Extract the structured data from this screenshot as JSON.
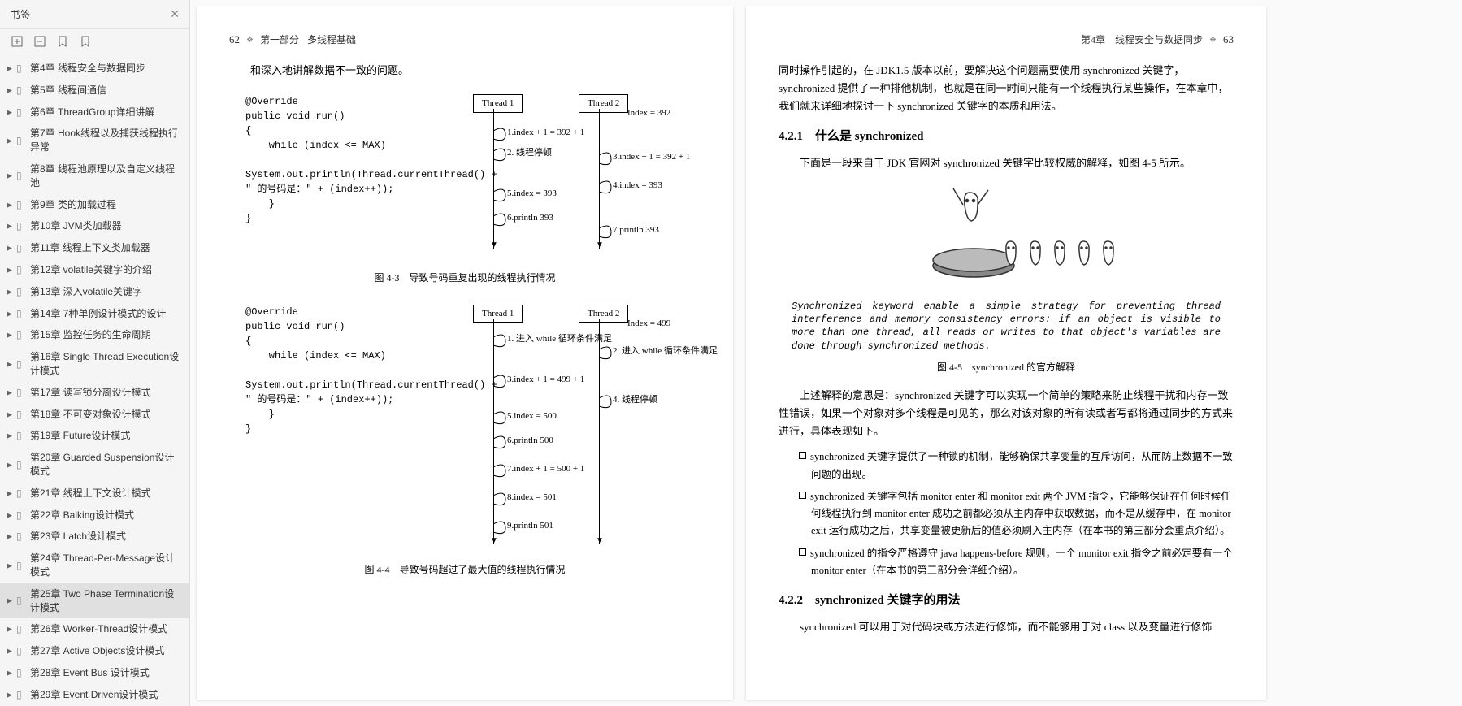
{
  "sidebar": {
    "title": "书签",
    "items": [
      {
        "label": "第4章 线程安全与数据同步",
        "selected": false
      },
      {
        "label": "第5章 线程间通信",
        "selected": false
      },
      {
        "label": "第6章 ThreadGroup详细讲解",
        "selected": false
      },
      {
        "label": "第7章 Hook线程以及捕获线程执行异常",
        "selected": false
      },
      {
        "label": "第8章 线程池原理以及自定义线程池",
        "selected": false
      },
      {
        "label": "第9章 类的加载过程",
        "selected": false
      },
      {
        "label": "第10章 JVM类加载器",
        "selected": false
      },
      {
        "label": "第11章 线程上下文类加载器",
        "selected": false
      },
      {
        "label": "第12章 volatile关键字的介绍",
        "selected": false
      },
      {
        "label": "第13章 深入volatile关键字",
        "selected": false
      },
      {
        "label": "第14章 7种单例设计模式的设计",
        "selected": false
      },
      {
        "label": "第15章 监控任务的生命周期",
        "selected": false
      },
      {
        "label": "第16章 Single Thread Execution设计模式",
        "selected": false
      },
      {
        "label": "第17章 读写锁分离设计模式",
        "selected": false
      },
      {
        "label": "第18章 不可变对象设计模式",
        "selected": false
      },
      {
        "label": "第19章 Future设计模式",
        "selected": false
      },
      {
        "label": "第20章 Guarded Suspension设计模式",
        "selected": false
      },
      {
        "label": "第21章 线程上下文设计模式",
        "selected": false
      },
      {
        "label": "第22章 Balking设计模式",
        "selected": false
      },
      {
        "label": "第23章 Latch设计模式",
        "selected": false
      },
      {
        "label": "第24章 Thread-Per-Message设计模式",
        "selected": false
      },
      {
        "label": "第25章 Two Phase Termination设计模式",
        "selected": true
      },
      {
        "label": "第26章 Worker-Thread设计模式",
        "selected": false
      },
      {
        "label": "第27章 Active Objects设计模式",
        "selected": false
      },
      {
        "label": "第28章 Event Bus 设计模式",
        "selected": false
      },
      {
        "label": "第29章 Event Driven设计模式",
        "selected": false
      }
    ]
  },
  "leftPage": {
    "pageNum": "62",
    "part": "第一部分",
    "partTitle": "多线程基础",
    "intro": "和深入地讲解数据不一致的问题。",
    "code": "@Override\npublic void run()\n{\n    while (index <= MAX)\n\nSystem.out.println(Thread.currentThread() +\n\" 的号码是：\" + (index++));\n    }\n}",
    "diagram1": {
      "thread1": "Thread 1",
      "thread2": "Thread 2",
      "indexLabel": "Index = 392",
      "steps_t1": [
        "1.index + 1 = 392 + 1",
        "2. 线程停顿",
        "5.index = 393",
        "6.println 393"
      ],
      "steps_t2": [
        "3.index + 1 = 392 + 1",
        "4.index = 393",
        "7.println 393"
      ],
      "caption": "图 4-3　导致号码重复出现的线程执行情况"
    },
    "diagram2": {
      "thread1": "Thread 1",
      "thread2": "Thread 2",
      "indexLabel": "Index = 499",
      "steps_t1": [
        "1. 进入 while 循环条件满足",
        "3.index + 1 = 499 + 1",
        "5.index = 500",
        "6.println 500",
        "7.index + 1 = 500 + 1",
        "8.index = 501",
        "9.println 501"
      ],
      "steps_t2": [
        "2. 进入 while 循环条件满足",
        "4. 线程停顿"
      ],
      "caption": "图 4-4　导致号码超过了最大值的线程执行情况"
    }
  },
  "rightPage": {
    "pageNum": "63",
    "chapter": "第4章　线程安全与数据同步",
    "p1": "同时操作引起的，在 JDK1.5 版本以前，要解决这个问题需要使用 synchronized 关键字，synchronized 提供了一种排他机制，也就是在同一时间只能有一个线程执行某些操作，在本章中，我们就来详细地探讨一下 synchronized 关键字的本质和用法。",
    "h421": "4.2.1　什么是 synchronized",
    "p2": "下面是一段来自于 JDK 官网对 synchronized 关键字比较权威的解释，如图 4-5 所示。",
    "quote": "Synchronized keyword enable a simple strategy for preventing thread interference and memory consistency errors: if an object is visible to more than one thread, all reads or writes to that object's variables are done through synchronized methods.",
    "figcap": "图 4-5　synchronized 的官方解释",
    "p3": "上述解释的意思是：synchronized 关键字可以实现一个简单的策略来防止线程干扰和内存一致性错误，如果一个对象对多个线程是可见的，那么对该对象的所有读或者写都将通过同步的方式来进行，具体表现如下。",
    "b1": "synchronized 关键字提供了一种锁的机制，能够确保共享变量的互斥访问，从而防止数据不一致问题的出现。",
    "b2": "synchronized 关键字包括 monitor enter 和 monitor exit 两个 JVM 指令，它能够保证在任何时候任何线程执行到 monitor enter 成功之前都必须从主内存中获取数据，而不是从缓存中，在 monitor exit 运行成功之后，共享变量被更新后的值必须刷入主内存（在本书的第三部分会重点介绍）。",
    "b3": "synchronized 的指令严格遵守 java happens-before 规则，一个 monitor exit 指令之前必定要有一个 monitor enter（在本书的第三部分会详细介绍）。",
    "h422": "4.2.2　synchronized 关键字的用法",
    "p4": "synchronized 可以用于对代码块或方法进行修饰，而不能够用于对 class 以及变量进行修饰"
  },
  "arrowColor": "#e74c3c"
}
